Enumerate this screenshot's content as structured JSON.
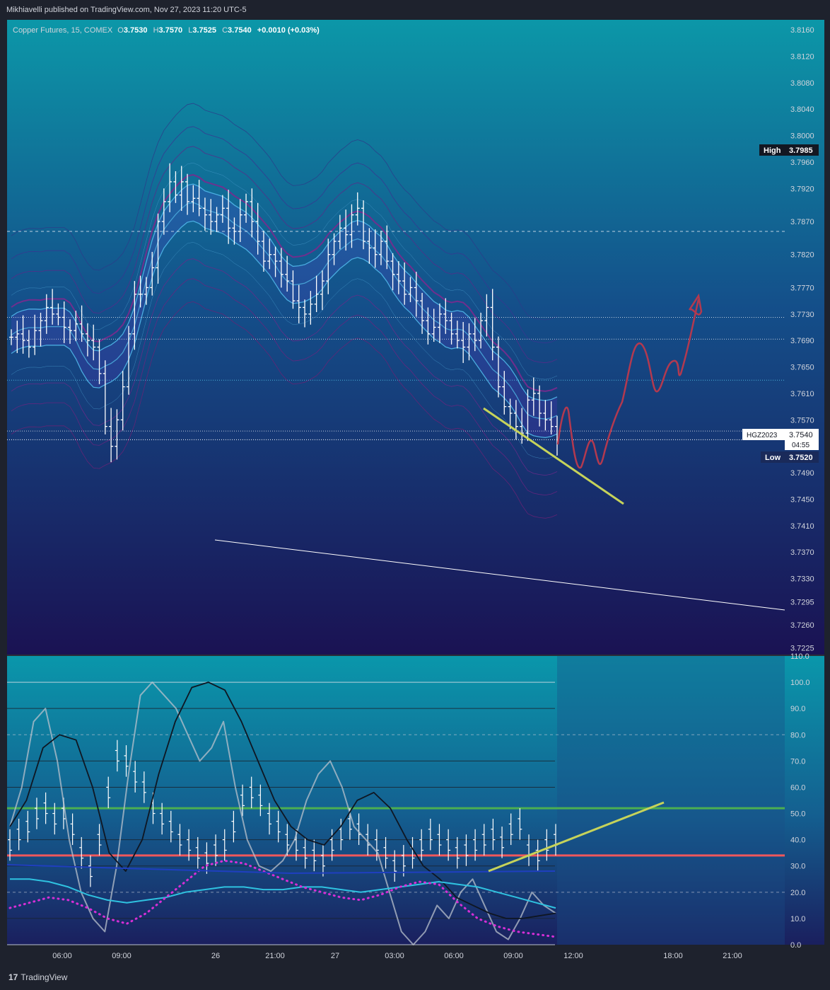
{
  "header": {
    "publish_line": "Mikhiavelli published on TradingView.com, Nov 27, 2023 11:20 UTC-5"
  },
  "legend": {
    "symbol": "Copper Futures, 15, COMEX",
    "o_label": "O",
    "o_value": "3.7530",
    "h_label": "H",
    "h_value": "3.7570",
    "l_label": "L",
    "l_value": "3.7525",
    "c_label": "C",
    "c_value": "3.7540",
    "change": "+0.0010 (+0.03%)"
  },
  "price_axis": {
    "ticks": [
      "3.8160",
      "3.8120",
      "3.8080",
      "3.8040",
      "3.8000",
      "3.7960",
      "3.7920",
      "3.7870",
      "3.7820",
      "3.7770",
      "3.7730",
      "3.7690",
      "3.7650",
      "3.7610",
      "3.7570",
      "3.7490",
      "3.7450",
      "3.7410",
      "3.7370",
      "3.7330",
      "3.7295",
      "3.7260",
      "3.7225"
    ],
    "high_label": "High",
    "high_value": "3.7985",
    "low_label": "Low",
    "low_value": "3.7520",
    "ticker_label": "HGZ2023",
    "last_value": "3.7540",
    "countdown": "04:55"
  },
  "osc_axis": {
    "ticks": [
      "110.0",
      "100.0",
      "90.0",
      "80.0",
      "70.0",
      "60.0",
      "50.0",
      "40.0",
      "30.0",
      "20.0",
      "10.0",
      "0.0"
    ]
  },
  "time_axis": {
    "ticks": [
      "06:00",
      "09:00",
      "26",
      "21:00",
      "27",
      "03:00",
      "06:00",
      "09:00",
      "12:00",
      "18:00",
      "21:00"
    ]
  },
  "colors": {
    "accent_green": "#4caf50",
    "accent_red": "#f0575b",
    "trend_yellow": "#c6d35a",
    "projection_red": "#b3394f",
    "candle": "#ffffff",
    "stoch_magenta": "#d62fd6"
  },
  "footer": {
    "brand": "TradingView"
  },
  "chart_data": [
    {
      "type": "ohlc",
      "title": "Copper Futures, 15, COMEX",
      "ylim": [
        3.7215,
        3.8175
      ],
      "x_ticks": [
        "06:00",
        "09:00",
        "26",
        "21:00",
        "27",
        "03:00",
        "06:00",
        "09:00",
        "12:00",
        "18:00",
        "21:00"
      ],
      "close": [
        3.7695,
        3.77,
        3.769,
        3.768,
        3.7705,
        3.772,
        3.774,
        3.773,
        3.7725,
        3.771,
        3.7705,
        3.7715,
        3.77,
        3.769,
        3.768,
        3.764,
        3.756,
        3.753,
        3.757,
        3.762,
        3.77,
        3.776,
        3.776,
        3.777,
        3.78,
        3.787,
        3.79,
        3.793,
        3.791,
        3.793,
        3.79,
        3.7905,
        3.789,
        3.788,
        3.787,
        3.788,
        3.789,
        3.786,
        3.7855,
        3.788,
        3.79,
        3.787,
        3.784,
        3.781,
        3.782,
        3.781,
        3.779,
        3.778,
        3.775,
        3.774,
        3.773,
        3.7745,
        3.776,
        3.778,
        3.782,
        3.784,
        3.786,
        3.785,
        3.788,
        3.789,
        3.784,
        3.783,
        3.782,
        3.784,
        3.781,
        3.779,
        3.778,
        3.776,
        3.777,
        3.775,
        3.772,
        3.77,
        3.771,
        3.773,
        3.772,
        3.77,
        3.769,
        3.768,
        3.77,
        3.769,
        3.772,
        3.774,
        3.768,
        3.762,
        3.759,
        3.758,
        3.756,
        3.755,
        3.76,
        3.761,
        3.758,
        3.757,
        3.756,
        3.754
      ],
      "series": [
        {
          "name": "",
          "kind": "dashed_level",
          "values": [
            3.7855
          ]
        },
        {
          "name": "",
          "kind": "dotted_level",
          "values": [
            3.7725,
            3.7692,
            3.763,
            3.7553
          ]
        }
      ],
      "annotations": [
        {
          "kind": "trendline",
          "color": "yellow",
          "from": [
            "09:00",
            3.758
          ],
          "to": [
            "12:00+",
            3.746
          ]
        },
        {
          "kind": "trendline",
          "color": "white",
          "from": [
            "26",
            3.738
          ],
          "to": [
            "21:00+",
            3.727
          ]
        },
        {
          "kind": "projection_path",
          "color": "red",
          "values": [
            3.7545,
            3.7585,
            3.751,
            3.756,
            3.75,
            3.757,
            3.7685,
            3.765,
            3.7615,
            3.7648,
            3.776
          ]
        }
      ]
    },
    {
      "type": "oscillator",
      "ylim": [
        0,
        110
      ],
      "levels": [
        {
          "value": 52,
          "color": "green"
        },
        {
          "value": 34,
          "color": "red"
        },
        {
          "value": 80,
          "style": "dashed"
        },
        {
          "value": 20,
          "style": "dashed"
        }
      ],
      "series": [
        {
          "name": "",
          "values": [
            38,
            42,
            45,
            50,
            52,
            48,
            50,
            44,
            35,
            28,
            40,
            58,
            72,
            70,
            64,
            60,
            52,
            48,
            45,
            40,
            38,
            35,
            33,
            36,
            38,
            45,
            55,
            58,
            55,
            48,
            45,
            40,
            38,
            35,
            34,
            32,
            38,
            42,
            46,
            44,
            40,
            38,
            35,
            30,
            32,
            35,
            38,
            42,
            40,
            38,
            35,
            36,
            38,
            40,
            42,
            39,
            44,
            46,
            36,
            34,
            38,
            40
          ]
        },
        {
          "name": "",
          "values": [
            45,
            60,
            85,
            90,
            70,
            40,
            20,
            10,
            5,
            30,
            65,
            95,
            100,
            95,
            90,
            80,
            70,
            75,
            85,
            60,
            40,
            30,
            28,
            32,
            40,
            55,
            65,
            70,
            60,
            45,
            40,
            35,
            20,
            5,
            0,
            5,
            15,
            10,
            20,
            25,
            15,
            5,
            2,
            10,
            20,
            15,
            12
          ]
        },
        {
          "name": "",
          "values": [
            45,
            55,
            75,
            80,
            78,
            60,
            35,
            28,
            40,
            65,
            85,
            98,
            100,
            97,
            85,
            70,
            55,
            45,
            40,
            38,
            45,
            55,
            58,
            52,
            40,
            30,
            25,
            18,
            15,
            12,
            10,
            10,
            11,
            12
          ]
        },
        {
          "name": "",
          "values": [
            25,
            25,
            24,
            22,
            19,
            17,
            16,
            17,
            18,
            20,
            21,
            22,
            22,
            21,
            21,
            22,
            22,
            21,
            20,
            21,
            22,
            23,
            24,
            23,
            22,
            20,
            18,
            16,
            14
          ]
        },
        {
          "name": "",
          "values": [
            14,
            16,
            18,
            17,
            14,
            10,
            8,
            12,
            18,
            24,
            30,
            32,
            31,
            28,
            25,
            22,
            20,
            18,
            17,
            19,
            22,
            24,
            23,
            16,
            10,
            7,
            5,
            4,
            3
          ]
        }
      ]
    }
  ]
}
